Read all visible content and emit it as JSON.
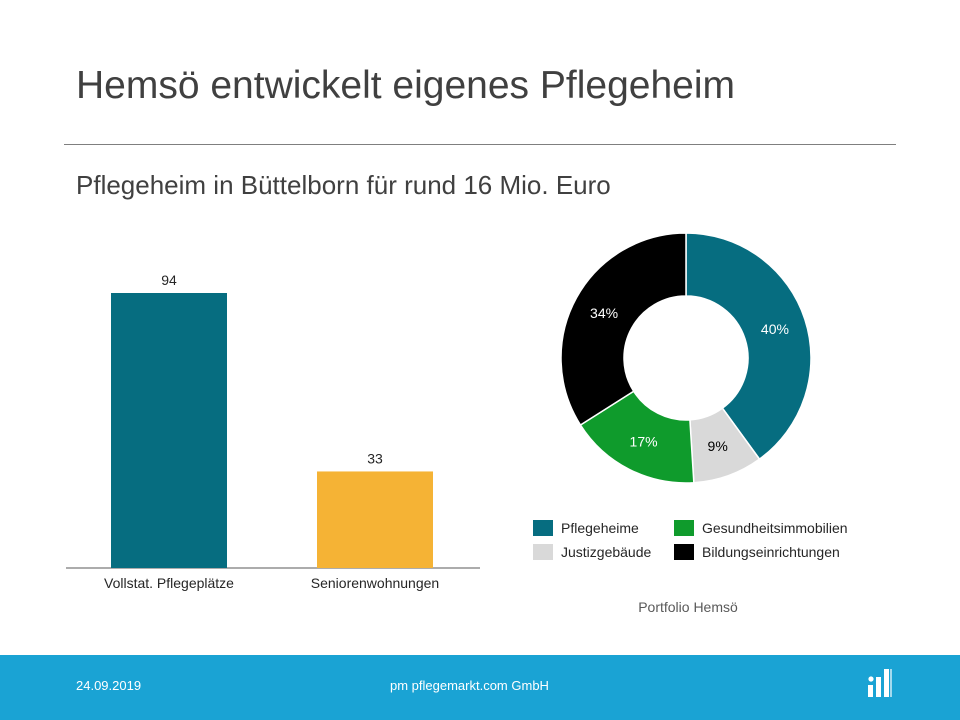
{
  "slide": {
    "title": "Hemsö entwickelt eigenes Pflegeheim",
    "subtitle": "Pflegeheim in Büttelborn für rund 16 Mio. Euro"
  },
  "footer": {
    "date": "24.09.2019",
    "company": "pm pflegemarkt.com GmbH",
    "logo_icon": "pflegemarkt-logo-icon"
  },
  "chart_data": [
    {
      "type": "bar",
      "categories": [
        "Vollstat. Pflegeplätze",
        "Seniorenwohnungen"
      ],
      "values": [
        94,
        33
      ],
      "data_labels": [
        "94",
        "33"
      ],
      "colors": [
        "#066d80",
        "#f5b335"
      ],
      "ylim": [
        0,
        100
      ]
    },
    {
      "type": "pie",
      "variant": "donut",
      "caption": "Portfolio Hemsö",
      "labels": [
        "Pflegeheime",
        "Justizgebäude",
        "Gesundheitsimmobilien",
        "Bildungseinrichtungen"
      ],
      "values": [
        40,
        9,
        17,
        34
      ],
      "value_labels": [
        "40%",
        "9%",
        "17%",
        "34%"
      ],
      "colors": [
        "#066d80",
        "#d9d9d9",
        "#0f9b2c",
        "#000000"
      ],
      "label_colors": [
        "#ffffff",
        "#000000",
        "#ffffff",
        "#ffffff"
      ],
      "legend_placement": "bottom"
    }
  ]
}
